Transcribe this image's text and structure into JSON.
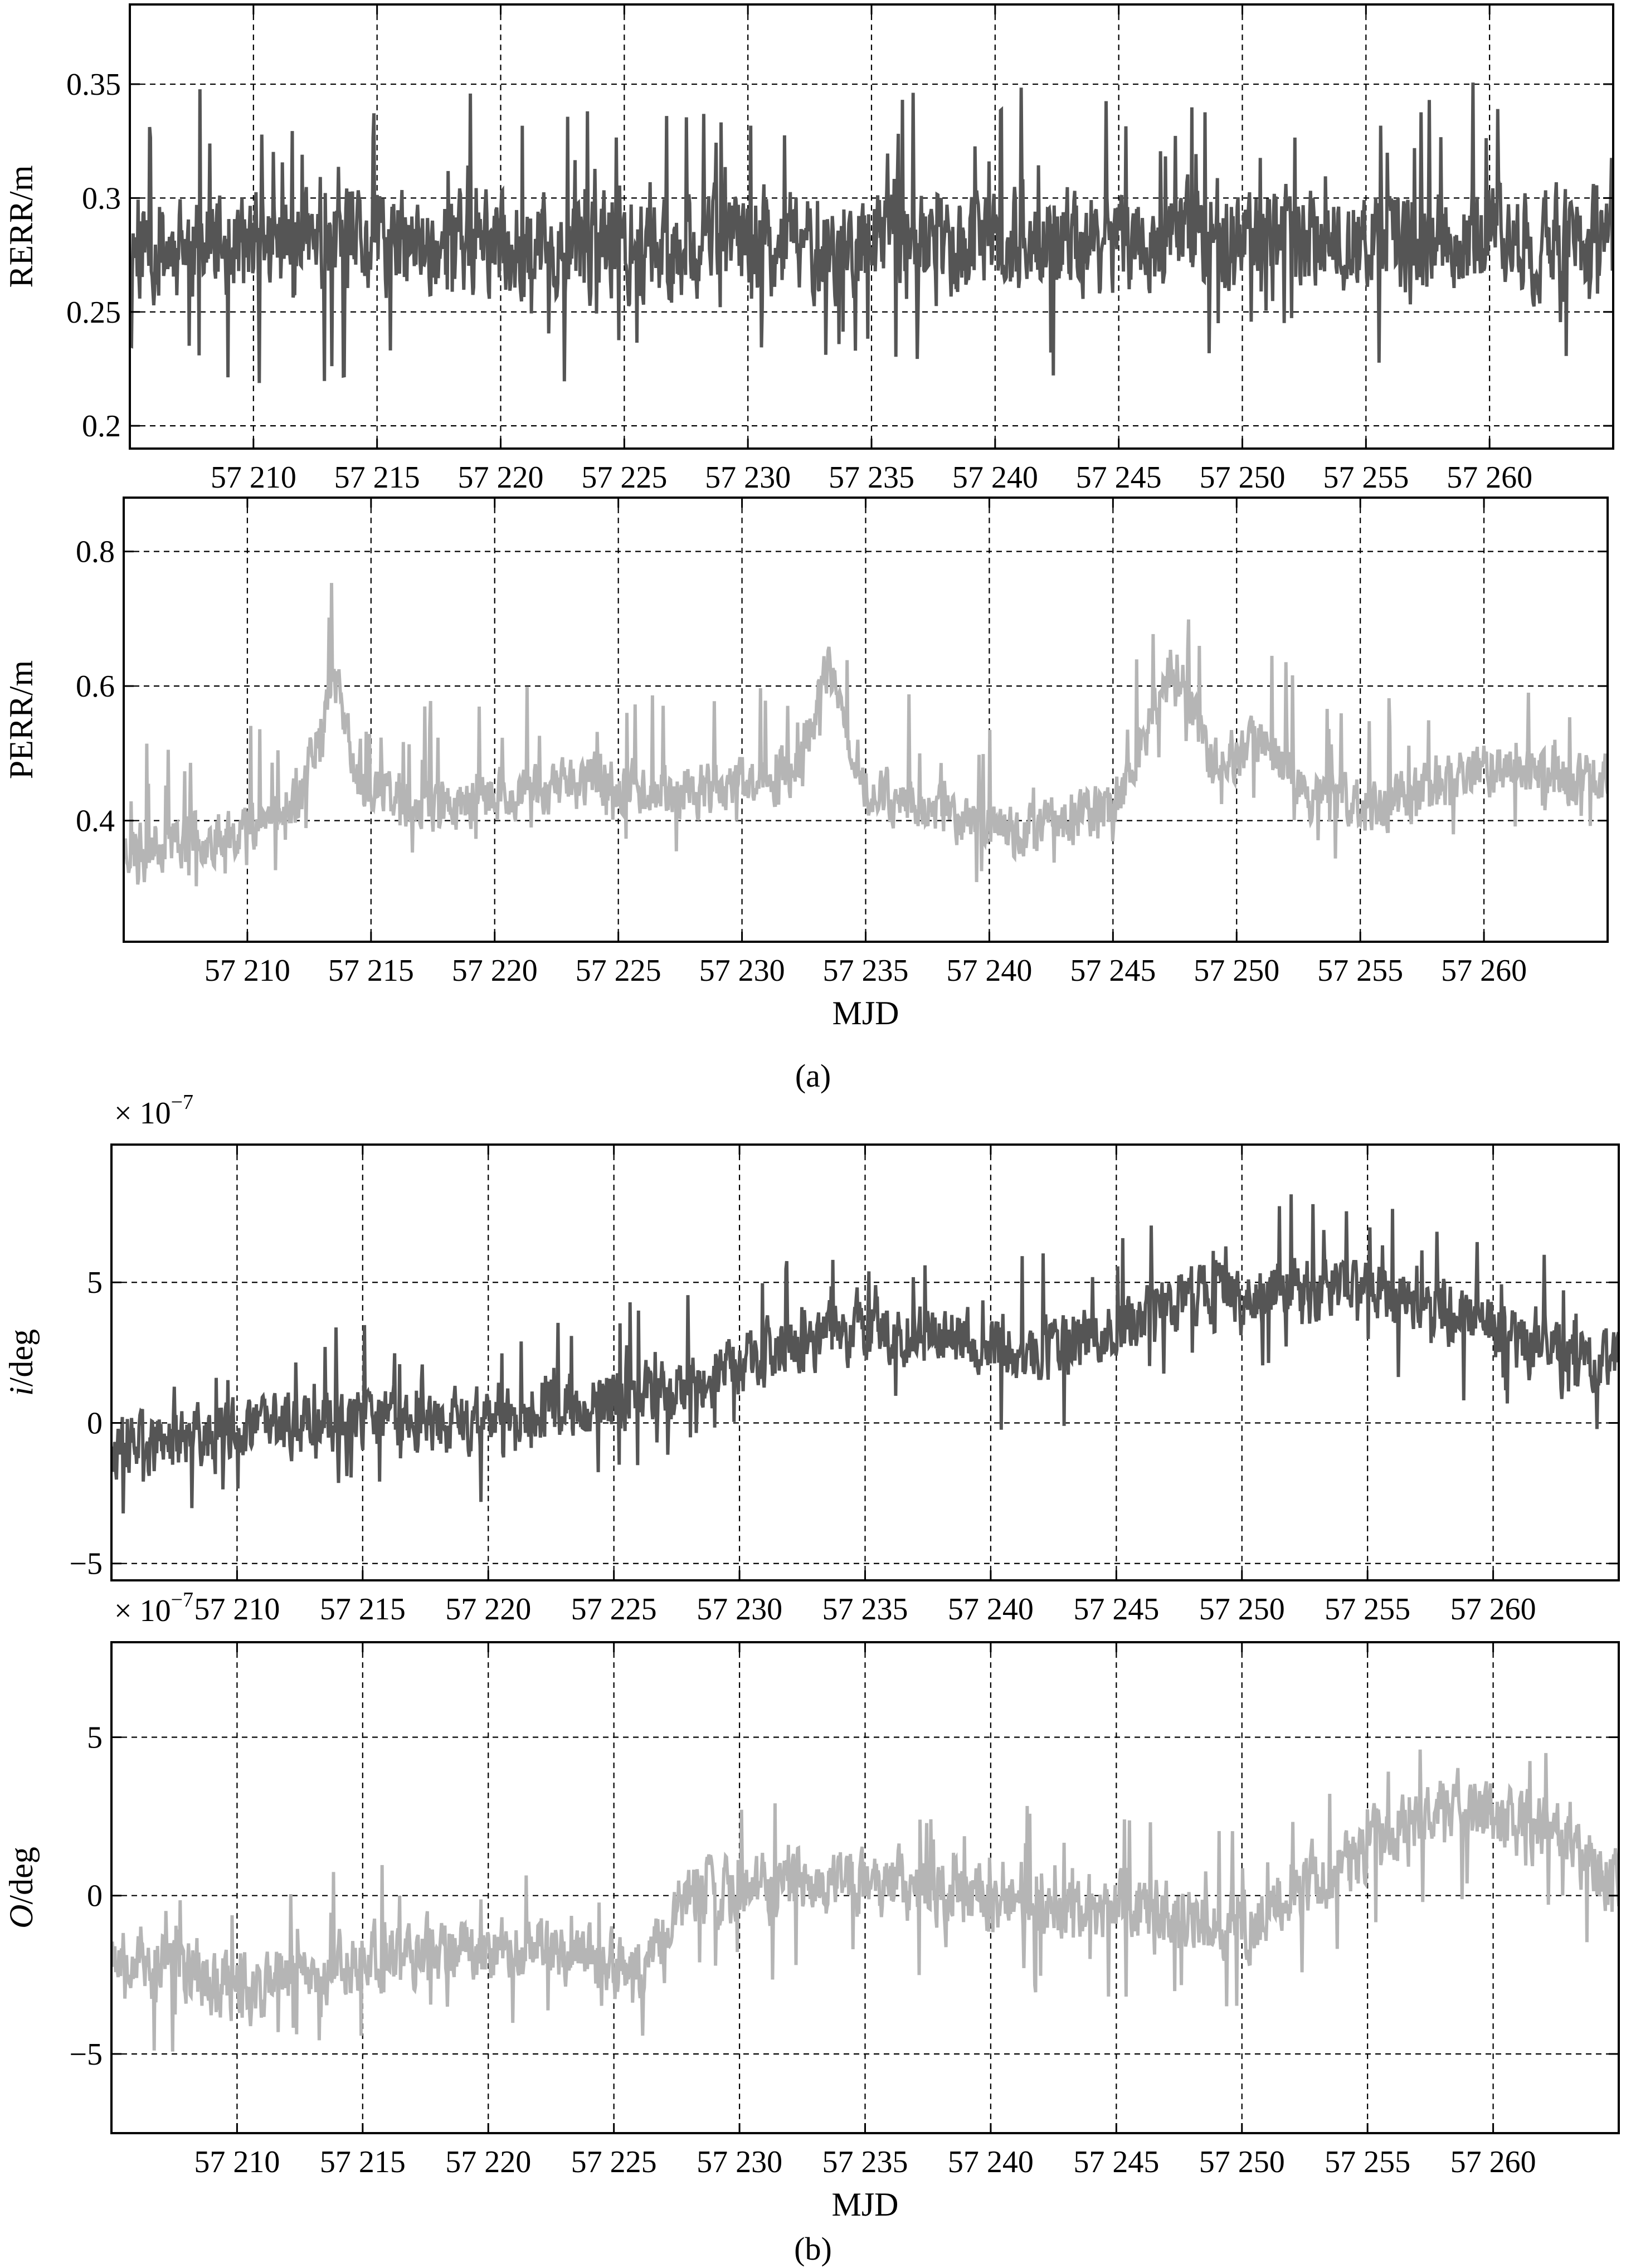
{
  "figure": {
    "caption_a": "(a)",
    "caption_b": "(b)"
  },
  "chart_data": [
    {
      "type": "line",
      "panel": "RERR",
      "ylabel": "RERR/m",
      "xlabel": "",
      "multiplier": "",
      "color": "#555555",
      "xlim": [
        57205,
        57265
      ],
      "ylim": [
        0.19,
        0.385
      ],
      "xticks": [
        57210,
        57215,
        57220,
        57225,
        57230,
        57235,
        57240,
        57245,
        57250,
        57255,
        57260
      ],
      "xtick_labels": [
        "57 210",
        "57 215",
        "57 220",
        "57 225",
        "57 230",
        "57 235",
        "57 240",
        "57 245",
        "57 250",
        "57 255",
        "57 260"
      ],
      "yticks": [
        0.2,
        0.25,
        0.3,
        0.35
      ],
      "ytick_labels": [
        "0.2",
        "0.25",
        "0.3",
        "0.35"
      ],
      "grid": true,
      "trend": [
        [
          57205,
          0.278
        ],
        [
          57235,
          0.28
        ],
        [
          57265,
          0.282
        ]
      ],
      "noise": 0.032,
      "spike_up": 0.07,
      "spike_down": 0.06,
      "seed": 11
    },
    {
      "type": "line",
      "panel": "PERR",
      "ylabel": "PERR/m",
      "xlabel": "MJD",
      "multiplier": "",
      "color": "#b5b5b5",
      "xlim": [
        57205,
        57265
      ],
      "ylim": [
        0.22,
        0.88
      ],
      "xticks": [
        57210,
        57215,
        57220,
        57225,
        57230,
        57235,
        57240,
        57245,
        57250,
        57255,
        57260
      ],
      "xtick_labels": [
        "57 210",
        "57 215",
        "57 220",
        "57 225",
        "57 230",
        "57 235",
        "57 240",
        "57 245",
        "57 250",
        "57 255",
        "57 260"
      ],
      "yticks": [
        0.4,
        0.6,
        0.8
      ],
      "ytick_labels": [
        "0.4",
        "0.6",
        "0.8"
      ],
      "grid": true,
      "trend": [
        [
          57205,
          0.36
        ],
        [
          57209,
          0.38
        ],
        [
          57212,
          0.42
        ],
        [
          57213.5,
          0.62
        ],
        [
          57214.5,
          0.45
        ],
        [
          57218,
          0.42
        ],
        [
          57224,
          0.46
        ],
        [
          57228,
          0.44
        ],
        [
          57232,
          0.47
        ],
        [
          57233.5,
          0.62
        ],
        [
          57235,
          0.45
        ],
        [
          57241,
          0.38
        ],
        [
          57245,
          0.42
        ],
        [
          57247.5,
          0.64
        ],
        [
          57249,
          0.48
        ],
        [
          57251,
          0.52
        ],
        [
          57253,
          0.44
        ],
        [
          57256,
          0.42
        ],
        [
          57260,
          0.48
        ],
        [
          57265,
          0.46
        ]
      ],
      "noise": 0.055,
      "spike_up": 0.16,
      "spike_down": 0.09,
      "seed": 23
    },
    {
      "type": "line",
      "panel": "i",
      "ylabel": "i/deg",
      "xlabel": "",
      "multiplier": "× 10",
      "multiplier_exp": "−7",
      "color": "#555555",
      "xlim": [
        57205,
        57265
      ],
      "ylim": [
        -5.6,
        9.9
      ],
      "xticks": [
        57210,
        57215,
        57220,
        57225,
        57230,
        57235,
        57240,
        57245,
        57250,
        57255,
        57260
      ],
      "xtick_labels": [
        "57 210",
        "57 215",
        "57 220",
        "57 225",
        "57 230",
        "57 235",
        "57 240",
        "57 245",
        "57 250",
        "57 255",
        "57 260"
      ],
      "yticks": [
        -5,
        0,
        5
      ],
      "ytick_labels": [
        "−5",
        "0",
        "5"
      ],
      "grid": true,
      "trend": [
        [
          57205,
          -1.0
        ],
        [
          57212,
          0.0
        ],
        [
          57220,
          0.0
        ],
        [
          57228,
          1.5
        ],
        [
          57235,
          3.5
        ],
        [
          57242,
          2.5
        ],
        [
          57248,
          4.5
        ],
        [
          57255,
          5.0
        ],
        [
          57262,
          2.5
        ],
        [
          57265,
          2.0
        ]
      ],
      "noise": 1.6,
      "spike_up": 3.5,
      "spike_down": 3.0,
      "seed": 37
    },
    {
      "type": "line",
      "panel": "O",
      "ylabel": "O/deg",
      "xlabel": "MJD",
      "multiplier": "× 10",
      "multiplier_exp": "−7",
      "color": "#b5b5b5",
      "xlim": [
        57205,
        57265
      ],
      "ylim": [
        -7.5,
        8.0
      ],
      "xticks": [
        57210,
        57215,
        57220,
        57225,
        57230,
        57235,
        57240,
        57245,
        57250,
        57255,
        57260
      ],
      "xtick_labels": [
        "57 210",
        "57 215",
        "57 220",
        "57 225",
        "57 230",
        "57 235",
        "57 240",
        "57 245",
        "57 250",
        "57 255",
        "57 260"
      ],
      "yticks": [
        -5,
        0,
        5
      ],
      "ytick_labels": [
        "−5",
        "0",
        "5"
      ],
      "grid": true,
      "trend": [
        [
          57205,
          -1.5
        ],
        [
          57210,
          -3.0
        ],
        [
          57215,
          -2.0
        ],
        [
          57222,
          -1.5
        ],
        [
          57226,
          -2.5
        ],
        [
          57228,
          0.0
        ],
        [
          57235,
          0.5
        ],
        [
          57240,
          0.0
        ],
        [
          57247,
          -0.5
        ],
        [
          57250,
          -1.0
        ],
        [
          57255,
          1.5
        ],
        [
          57258,
          3.0
        ],
        [
          57262,
          2.0
        ],
        [
          57265,
          0.5
        ]
      ],
      "noise": 1.5,
      "spike_up": 3.0,
      "spike_down": 3.0,
      "seed": 53
    }
  ]
}
